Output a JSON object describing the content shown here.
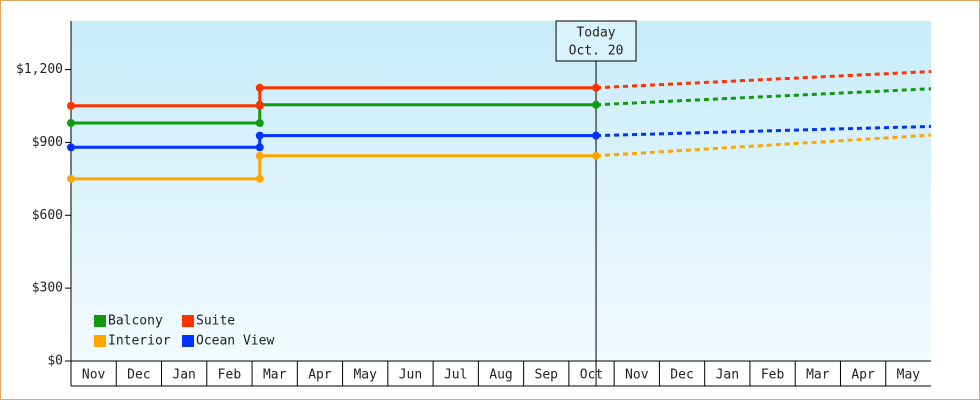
{
  "chart_data": {
    "type": "line",
    "categories": [
      "Nov",
      "Dec",
      "Jan",
      "Feb",
      "Mar",
      "Apr",
      "May",
      "Jun",
      "Jul",
      "Aug",
      "Sep",
      "Oct",
      "Nov",
      "Dec",
      "Jan",
      "Feb",
      "Mar",
      "Apr",
      "May"
    ],
    "xlim": [
      0,
      19
    ],
    "ylim": [
      0,
      1400
    ],
    "yticks": [
      {
        "value": 0,
        "label": "$0"
      },
      {
        "value": 300,
        "label": "$300"
      },
      {
        "value": 600,
        "label": "$600"
      },
      {
        "value": 900,
        "label": "$900"
      },
      {
        "value": 1200,
        "label": "$1,200"
      }
    ],
    "annotation": {
      "x": 11.6,
      "lines": [
        "Today",
        "Oct. 20"
      ]
    },
    "series": [
      {
        "name": "Balcony",
        "color": "#119911",
        "x": [
          0,
          4.17,
          4.17,
          11.6
        ],
        "values": [
          980,
          980,
          1055,
          1055
        ],
        "forecast": {
          "x": [
            11.6,
            19
          ],
          "values": [
            1055,
            1121
          ]
        }
      },
      {
        "name": "Suite",
        "color": "#ff3300",
        "x": [
          0,
          4.17,
          4.17,
          11.6
        ],
        "values": [
          1051,
          1051,
          1125,
          1125
        ],
        "forecast": {
          "x": [
            11.6,
            19
          ],
          "values": [
            1125,
            1192
          ]
        }
      },
      {
        "name": "Interior",
        "color": "#ffa500",
        "x": [
          0,
          4.17,
          4.17,
          11.6
        ],
        "values": [
          750,
          750,
          845,
          845
        ],
        "forecast": {
          "x": [
            11.6,
            19
          ],
          "values": [
            845,
            930
          ]
        }
      },
      {
        "name": "Ocean View",
        "color": "#0033ff",
        "x": [
          0,
          4.17,
          4.17,
          11.6
        ],
        "values": [
          880,
          880,
          928,
          928
        ],
        "forecast": {
          "x": [
            11.6,
            19
          ],
          "values": [
            928,
            966
          ]
        }
      }
    ]
  }
}
